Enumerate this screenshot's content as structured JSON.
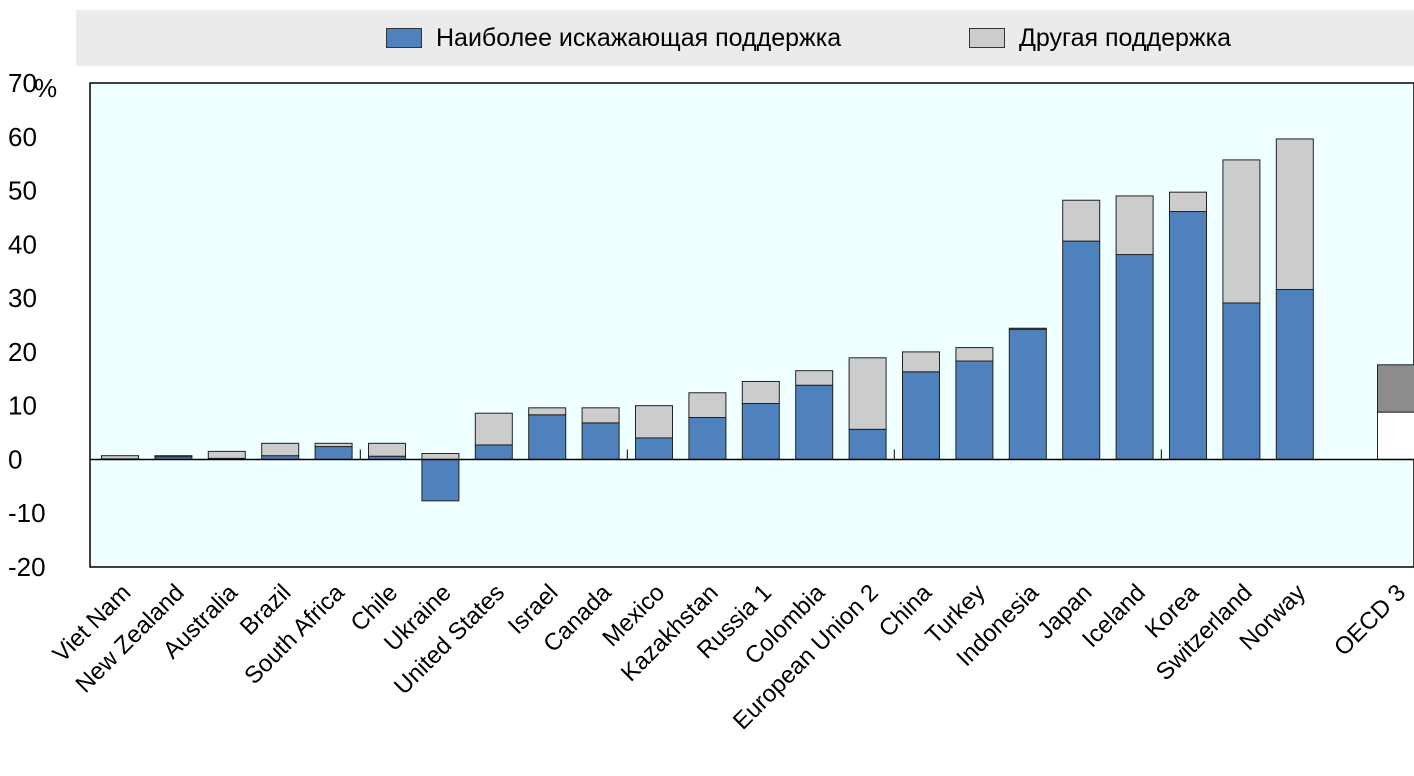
{
  "chart_data": {
    "type": "bar",
    "stacked": true,
    "title": "",
    "xlabel": "",
    "ylabel": "%",
    "ylim": [
      -20,
      70
    ],
    "yticks": [
      -20,
      -10,
      0,
      10,
      20,
      30,
      40,
      50,
      60,
      70
    ],
    "legend_position": "top",
    "colors": {
      "plot_background": "#f0ffff",
      "most_distorting": "#4f81bd",
      "other": "#cccccc",
      "oecd_most_distorting": "#ffffff",
      "oecd_other": "#8c8c8c"
    },
    "categories": [
      "Viet Nam",
      "New Zealand",
      "Australia",
      "Brazil",
      "South Africa",
      "Chile",
      "Ukraine",
      "United States",
      "Israel",
      "Canada",
      "Mexico",
      "Kazakhstan",
      "Russia 1",
      "Colombia",
      "European Union 2",
      "China",
      "Turkey",
      "Indonesia",
      "Japan",
      "Iceland",
      "Korea",
      "Switzerland",
      "Norway",
      "OECD 3"
    ],
    "series": [
      {
        "name": "Наиболее искажающая поддержка",
        "values": [
          0.1,
          0.5,
          0.2,
          0.7,
          2.4,
          0.6,
          -7.7,
          2.7,
          8.3,
          6.8,
          4.0,
          7.8,
          10.4,
          13.8,
          5.6,
          16.3,
          18.3,
          24.2,
          40.6,
          38.1,
          46.1,
          29.1,
          31.6,
          8.8
        ]
      },
      {
        "name": "Другая поддержка",
        "values": [
          0.6,
          0.2,
          1.3,
          2.3,
          0.6,
          2.4,
          1.1,
          5.9,
          1.3,
          2.8,
          6.0,
          4.6,
          4.1,
          2.7,
          13.3,
          3.7,
          2.5,
          0.2,
          7.6,
          10.9,
          3.6,
          26.6,
          28.0,
          8.8
        ]
      }
    ]
  }
}
